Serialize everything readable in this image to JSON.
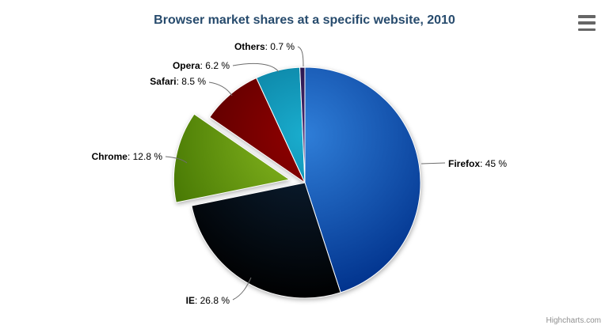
{
  "title": {
    "text": "Browser market shares at a specific website, 2010",
    "color": "#274b6d"
  },
  "credits": {
    "text": "Highcharts.com"
  },
  "export_menu": {
    "icon": "hamburger-menu-icon"
  },
  "chart_data": {
    "type": "pie",
    "title": "Browser market shares at a specific website, 2010",
    "legend": "none",
    "grid": "off",
    "value_suffix": " %",
    "label_separator": ": ",
    "start_angle_deg": 0,
    "direction": "clockwise",
    "slices": [
      {
        "name": "Firefox",
        "value": 45,
        "display": "45 %",
        "color": "#2f7ed8",
        "sliced": false
      },
      {
        "name": "IE",
        "value": 26.8,
        "display": "26.8 %",
        "color": "#0d233a",
        "sliced": false
      },
      {
        "name": "Chrome",
        "value": 12.8,
        "display": "12.8 %",
        "color": "#8bbc21",
        "sliced": true
      },
      {
        "name": "Safari",
        "value": 8.5,
        "display": "8.5 %",
        "color": "#910000",
        "sliced": false
      },
      {
        "name": "Opera",
        "value": 6.2,
        "display": "6.2 %",
        "color": "#1aadce",
        "sliced": false
      },
      {
        "name": "Others",
        "value": 0.7,
        "display": "0.7 %",
        "color": "#492970",
        "sliced": false
      }
    ]
  }
}
